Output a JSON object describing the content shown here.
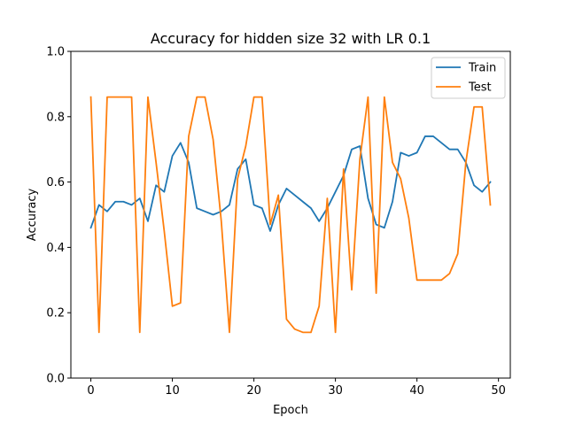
{
  "chart_data": {
    "type": "line",
    "title": "Accuracy for hidden size 32 with LR 0.1",
    "xlabel": "Epoch",
    "ylabel": "Accuracy",
    "xlim": [
      -2.45,
      51.45
    ],
    "ylim": [
      0.0,
      1.0
    ],
    "xticks": [
      0,
      10,
      20,
      30,
      40,
      50
    ],
    "yticks": [
      0.0,
      0.2,
      0.4,
      0.6,
      0.8,
      1.0
    ],
    "grid": false,
    "legend_position": "upper right",
    "x": [
      0,
      1,
      2,
      3,
      4,
      5,
      6,
      7,
      8,
      9,
      10,
      11,
      12,
      13,
      14,
      15,
      16,
      17,
      18,
      19,
      20,
      21,
      22,
      23,
      24,
      25,
      26,
      27,
      28,
      29,
      30,
      31,
      32,
      33,
      34,
      35,
      36,
      37,
      38,
      39,
      40,
      41,
      42,
      43,
      44,
      45,
      46,
      47,
      48,
      49
    ],
    "series": [
      {
        "name": "Train",
        "color": "#1f77b4",
        "values": [
          0.46,
          0.53,
          0.51,
          0.54,
          0.54,
          0.53,
          0.55,
          0.48,
          0.59,
          0.57,
          0.68,
          0.72,
          0.66,
          0.52,
          0.51,
          0.5,
          0.51,
          0.53,
          0.64,
          0.67,
          0.53,
          0.52,
          0.45,
          0.53,
          0.58,
          0.56,
          0.54,
          0.52,
          0.48,
          0.52,
          0.57,
          0.62,
          0.7,
          0.71,
          0.55,
          0.47,
          0.46,
          0.54,
          0.69,
          0.68,
          0.69,
          0.74,
          0.74,
          0.72,
          0.7,
          0.7,
          0.66,
          0.59,
          0.57,
          0.6
        ]
      },
      {
        "name": "Test",
        "color": "#ff7f0e",
        "values": [
          0.86,
          0.14,
          0.86,
          0.86,
          0.86,
          0.86,
          0.14,
          0.86,
          0.66,
          0.45,
          0.22,
          0.23,
          0.74,
          0.86,
          0.86,
          0.73,
          0.48,
          0.14,
          0.61,
          0.71,
          0.86,
          0.86,
          0.47,
          0.56,
          0.18,
          0.15,
          0.14,
          0.14,
          0.22,
          0.55,
          0.14,
          0.64,
          0.27,
          0.67,
          0.86,
          0.26,
          0.86,
          0.66,
          0.61,
          0.49,
          0.3,
          0.3,
          0.3,
          0.3,
          0.32,
          0.38,
          0.66,
          0.83,
          0.83,
          0.53
        ]
      }
    ]
  }
}
